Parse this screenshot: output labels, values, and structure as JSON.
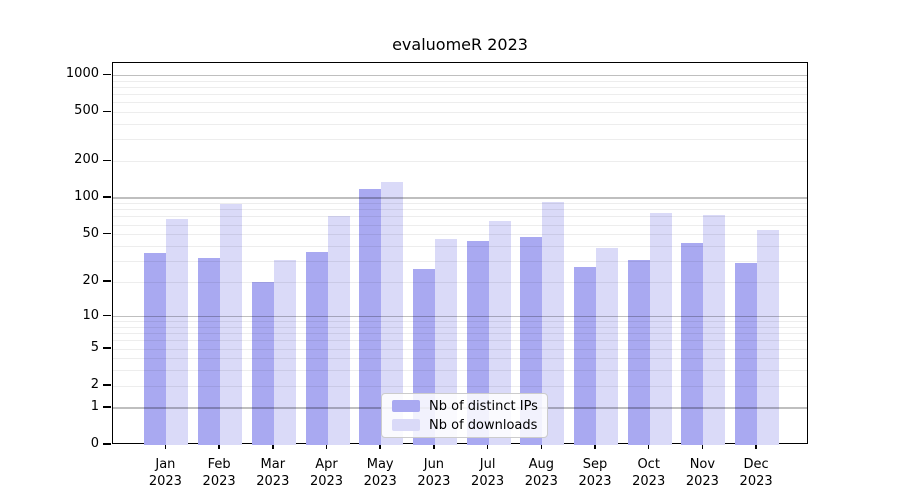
{
  "title": "evaluomeR 2023",
  "colors": {
    "distinct_ips": "#a9a9f1",
    "downloads": "#dadaf8",
    "grid_major": "rgba(0,0,0,0.25)",
    "grid_minor": "rgba(0,0,0,0.07)",
    "axis": "#000000",
    "legend_border": "#cccccc"
  },
  "legend": {
    "items": [
      {
        "label": "Nb of distinct IPs",
        "color_key": "distinct_ips"
      },
      {
        "label": "Nb of downloads",
        "color_key": "downloads"
      }
    ]
  },
  "chart_data": {
    "type": "bar",
    "title": "evaluomeR 2023",
    "categories": [
      "Jan",
      "Feb",
      "Mar",
      "Apr",
      "May",
      "Jun",
      "Jul",
      "Aug",
      "Sep",
      "Oct",
      "Nov",
      "Dec"
    ],
    "year_label": "2023",
    "series": [
      {
        "name": "Nb of distinct IPs",
        "values": [
          35,
          32,
          20,
          36,
          119,
          26,
          44,
          48,
          27,
          31,
          43,
          29
        ]
      },
      {
        "name": "Nb of downloads",
        "values": [
          67,
          90,
          31,
          71,
          135,
          46,
          65,
          93,
          39,
          75,
          72,
          55
        ]
      }
    ],
    "yscale": "log1p",
    "yticks": [
      0,
      1,
      2,
      5,
      10,
      20,
      50,
      100,
      200,
      500,
      1000
    ],
    "ylim": [
      0,
      1260
    ],
    "grid": "horizontal major+minor, drawn above bars",
    "legend_position": "inside lower-center"
  }
}
